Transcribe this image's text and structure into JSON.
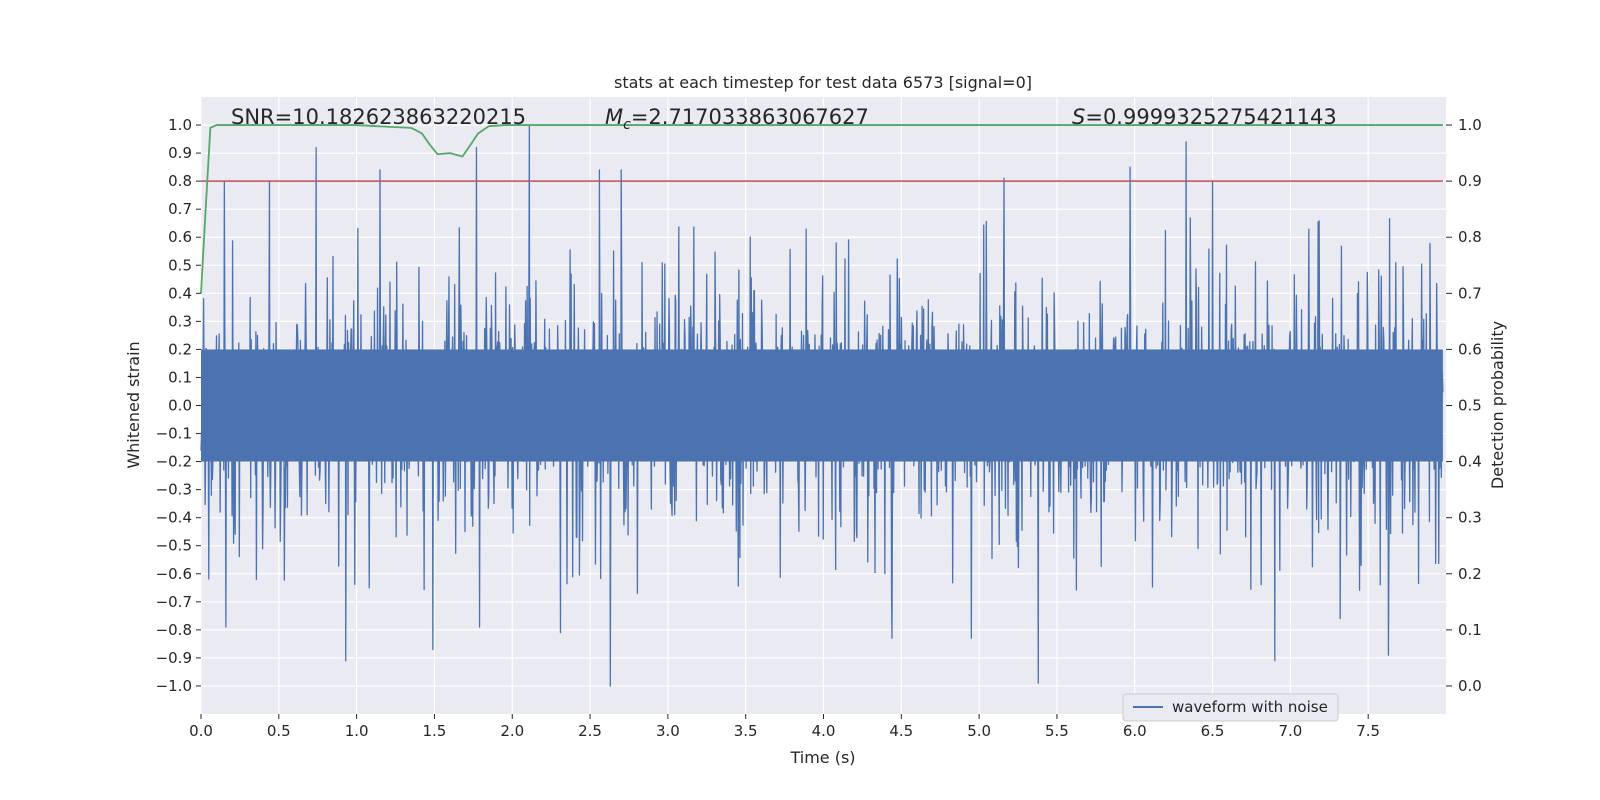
{
  "chart_data": {
    "type": "line",
    "title": "stats at each timestep for test data 6573 [signal=0]",
    "xlabel": "Time (s)",
    "ylabel_left": "Whitened strain",
    "ylabel_right": "Detection probability",
    "xlim": [
      0.0,
      8.0
    ],
    "ylim_left": [
      -1.1,
      1.1
    ],
    "ylim_right": [
      -0.05,
      1.05
    ],
    "x_ticks": [
      0.0,
      0.5,
      1.0,
      1.5,
      2.0,
      2.5,
      3.0,
      3.5,
      4.0,
      4.5,
      5.0,
      5.5,
      6.0,
      6.5,
      7.0,
      7.5
    ],
    "x_tick_labels": [
      "0.0",
      "0.5",
      "1.0",
      "1.5",
      "2.0",
      "2.5",
      "3.0",
      "3.5",
      "4.0",
      "4.5",
      "5.0",
      "5.5",
      "6.0",
      "6.5",
      "7.0",
      "7.5"
    ],
    "y_left_ticks": [
      1.0,
      0.9,
      0.8,
      0.7,
      0.6,
      0.5,
      0.4,
      0.3,
      0.2,
      0.1,
      0.0,
      -0.1,
      -0.2,
      -0.3,
      -0.4,
      -0.5,
      -0.6,
      -0.7,
      -0.8,
      -0.9,
      -1.0
    ],
    "y_left_tick_labels": [
      "1.0",
      "0.9",
      "0.8",
      "0.7",
      "0.6",
      "0.5",
      "0.4",
      "0.3",
      "0.2",
      "0.1",
      "0.0",
      "−0.1",
      "−0.2",
      "−0.3",
      "−0.4",
      "−0.5",
      "−0.6",
      "−0.7",
      "−0.8",
      "−0.9",
      "−1.0"
    ],
    "y_right_ticks": [
      1.0,
      0.9,
      0.8,
      0.7,
      0.6,
      0.5,
      0.4,
      0.3,
      0.2,
      0.1,
      0.0
    ],
    "y_right_tick_labels": [
      "1.0",
      "0.9",
      "0.8",
      "0.7",
      "0.6",
      "0.5",
      "0.4",
      "0.3",
      "0.2",
      "0.1",
      "0.0"
    ],
    "annotations": {
      "snr": "SNR=10.182623863220215",
      "mc_symbol": "M",
      "mc_subscript": "c",
      "mc_value": "=2.717033863067627",
      "s_symbol": "S",
      "s_value": "=0.9999325275421143"
    },
    "legend": {
      "label": "waveform with noise",
      "placement": "lower-right"
    },
    "series": [
      {
        "name": "waveform with noise",
        "axis": "left",
        "color": "#4c72b0",
        "x_range": [
          0.0,
          8.0
        ],
        "typical_amplitude": 0.3,
        "peak_spikes": [
          {
            "x": 0.15,
            "y": 0.8
          },
          {
            "x": 0.44,
            "y": 0.8
          },
          {
            "x": 0.74,
            "y": 0.92
          },
          {
            "x": 1.15,
            "y": 0.84
          },
          {
            "x": 1.77,
            "y": 0.92
          },
          {
            "x": 2.11,
            "y": 1.0
          },
          {
            "x": 2.56,
            "y": 0.84
          },
          {
            "x": 2.7,
            "y": 0.84
          },
          {
            "x": 5.16,
            "y": 0.81
          },
          {
            "x": 5.97,
            "y": 0.85
          },
          {
            "x": 6.33,
            "y": 0.94
          },
          {
            "x": 6.5,
            "y": 0.8
          },
          {
            "x": 0.93,
            "y": -0.91
          },
          {
            "x": 1.49,
            "y": -0.87
          },
          {
            "x": 2.63,
            "y": -1.0
          },
          {
            "x": 5.38,
            "y": -0.99
          },
          {
            "x": 6.9,
            "y": -0.91
          },
          {
            "x": 7.63,
            "y": -0.89
          },
          {
            "x": 4.44,
            "y": -0.83
          },
          {
            "x": 4.95,
            "y": -0.83
          },
          {
            "x": 2.31,
            "y": -0.81
          },
          {
            "x": 0.16,
            "y": -0.79
          },
          {
            "x": 1.79,
            "y": -0.79
          },
          {
            "x": 7.32,
            "y": -0.76
          }
        ]
      },
      {
        "name": "detection probability",
        "axis": "right",
        "color": "#55a868",
        "x": [
          0.0,
          0.03,
          0.06,
          0.1,
          0.2,
          0.4,
          0.7,
          1.0,
          1.2,
          1.35,
          1.42,
          1.47,
          1.52,
          1.6,
          1.68,
          1.72,
          1.78,
          1.85,
          1.95,
          2.1,
          3.0,
          5.0,
          7.0,
          7.98
        ],
        "y": [
          0.7,
          0.85,
          0.995,
          1.0,
          1.0,
          1.0,
          1.0,
          1.0,
          0.997,
          0.995,
          0.985,
          0.965,
          0.948,
          0.95,
          0.944,
          0.96,
          0.985,
          0.998,
          1.0,
          1.0,
          1.0,
          1.0,
          1.0,
          1.0
        ]
      },
      {
        "name": "threshold",
        "axis": "right",
        "color": "#c44e52",
        "x": [
          0.0,
          7.98
        ],
        "y": [
          0.9,
          0.9
        ]
      }
    ],
    "grid": true
  },
  "colors": {
    "axes_background": "#eaeaf2",
    "grid": "#ffffff",
    "waveform": "#4c72b0",
    "probability": "#55a868",
    "threshold": "#c44e52"
  }
}
